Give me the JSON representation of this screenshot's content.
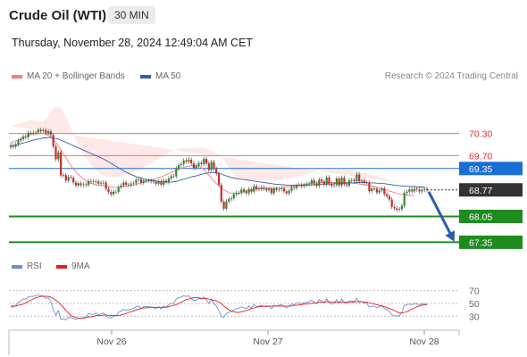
{
  "header": {
    "instrument": "Crude Oil (WTI)",
    "timeframe": "30 MIN",
    "timestamp": "Thursday, November 28, 2024 12:49:04 AM CET"
  },
  "legend": {
    "ma20_label": "MA 20 + Bollinger Bands",
    "ma20_color": "#f08080",
    "ma50_label": "MA 50",
    "ma50_color": "#3b5ea8",
    "copyright": "Research © 2024 Trading Central"
  },
  "rsi_legend": {
    "rsi_label": "RSI",
    "rsi_color": "#6b8fd6",
    "ma9_label": "9MA",
    "ma9_color": "#e02020"
  },
  "chart_data": [
    {
      "type": "candlestick",
      "ylim": [
        66.9,
        71.5
      ],
      "x_tick_labels": [
        "Nov 26",
        "Nov 27",
        "Nov 28"
      ],
      "levels": [
        {
          "value": 70.3,
          "label": "70.30",
          "kind": "resistance",
          "color": "#e57373"
        },
        {
          "value": 69.7,
          "label": "69.70",
          "kind": "resistance",
          "color": "#e57373"
        },
        {
          "value": 69.35,
          "label": "69.35",
          "kind": "pivot",
          "color": "#1a6fd6"
        },
        {
          "value": 68.77,
          "label": "68.77",
          "kind": "last-price",
          "color": "#333333"
        },
        {
          "value": 68.05,
          "label": "68.05",
          "kind": "support",
          "color": "#1e8c1e"
        },
        {
          "value": 67.35,
          "label": "67.35",
          "kind": "support",
          "color": "#1e8c1e"
        }
      ],
      "forecast": {
        "from": 68.77,
        "to": 67.35,
        "direction": "down",
        "color": "#2a5ca8"
      },
      "close": [
        69.98,
        69.94,
        70.01,
        70.11,
        70.15,
        70.22,
        70.2,
        70.32,
        70.32,
        70.31,
        70.33,
        70.4,
        70.36,
        70.39,
        70.31,
        70.36,
        70.26,
        69.95,
        69.6,
        69.79,
        69.16,
        69.17,
        69.02,
        69.12,
        69.1,
        68.97,
        68.89,
        68.95,
        68.9,
        68.92,
        68.9,
        69.01,
        69.0,
        68.98,
        69.0,
        68.94,
        68.96,
        68.97,
        68.8,
        68.71,
        68.65,
        68.72,
        68.72,
        68.85,
        68.89,
        68.97,
        68.91,
        68.91,
        68.94,
        68.95,
        69.04,
        69.06,
        68.96,
        69.02,
        69.02,
        69.02,
        69.0,
        68.99,
        68.94,
        69.0,
        68.91,
        69.02,
        68.98,
        69.08,
        69.14,
        69.14,
        69.36,
        69.44,
        69.47,
        69.57,
        69.54,
        69.59,
        69.49,
        69.37,
        69.42,
        69.5,
        69.47,
        69.61,
        69.49,
        69.31,
        69.53,
        69.34,
        69.21,
        68.91,
        68.45,
        68.26,
        68.46,
        68.52,
        68.54,
        68.65,
        68.69,
        68.69,
        68.78,
        68.73,
        68.68,
        68.79,
        68.72,
        68.87,
        68.79,
        68.8,
        68.84,
        68.8,
        68.76,
        68.8,
        68.68,
        68.81,
        68.77,
        68.79,
        68.81,
        68.73,
        68.68,
        68.75,
        68.85,
        68.82,
        68.89,
        68.9,
        68.87,
        68.9,
        68.93,
        68.94,
        69.03,
        68.94,
        68.88,
        69.05,
        69.0,
        68.91,
        69.11,
        68.93,
        68.88,
        68.9,
        69.08,
        68.89,
        69.1,
        68.92,
        68.89,
        69.03,
        69.04,
        69.0,
        69.19,
        69.0,
        69.03,
        68.96,
        68.97,
        68.74,
        68.81,
        68.8,
        68.7,
        68.76,
        68.81,
        68.65,
        68.6,
        68.51,
        68.31,
        68.27,
        68.23,
        68.25,
        68.34,
        68.69,
        68.72,
        68.78,
        68.73,
        68.8,
        68.78,
        68.73,
        68.77,
        68.8,
        68.77
      ],
      "ma50": [
        69.96,
        69.96,
        69.98,
        70.0,
        70.02,
        70.04,
        70.06,
        70.08,
        70.1,
        70.12,
        70.13,
        70.15,
        70.16,
        70.18,
        70.18,
        70.19,
        70.19,
        70.18,
        70.16,
        70.15,
        70.12,
        70.09,
        70.06,
        70.03,
        70.0,
        69.97,
        69.94,
        69.91,
        69.88,
        69.85,
        69.82,
        69.79,
        69.76,
        69.73,
        69.7,
        69.67,
        69.64,
        69.61,
        69.57,
        69.53,
        69.49,
        69.45,
        69.41,
        69.37,
        69.33,
        69.29,
        69.25,
        69.22,
        69.19,
        69.16,
        69.13,
        69.11,
        69.09,
        69.07,
        69.05,
        69.04,
        69.03,
        69.02,
        69.01,
        69.0,
        68.99,
        68.99,
        68.98,
        68.98,
        68.98,
        68.99,
        69.0,
        69.02,
        69.04,
        69.06,
        69.08,
        69.1,
        69.12,
        69.14,
        69.15,
        69.17,
        69.19,
        69.21,
        69.22,
        69.23,
        69.24,
        69.24,
        69.23,
        69.22,
        69.2,
        69.17,
        69.15,
        69.13,
        69.11,
        69.09,
        69.08,
        69.07,
        69.06,
        69.05,
        69.04,
        69.03,
        69.02,
        69.01,
        69.0,
        68.99,
        68.98,
        68.97,
        68.96,
        68.95,
        68.94,
        68.93,
        68.92,
        68.92,
        68.91,
        68.91,
        68.9,
        68.9,
        68.9,
        68.9,
        68.9,
        68.9,
        68.9,
        68.9,
        68.9,
        68.9,
        68.91,
        68.91,
        68.91,
        68.92,
        68.92,
        68.92,
        68.93,
        68.93,
        68.93,
        68.94,
        68.94,
        68.94,
        68.95,
        68.95,
        68.95,
        68.96,
        68.96,
        68.96,
        68.97,
        68.97,
        68.97,
        68.97,
        68.97,
        68.96,
        68.96,
        68.96,
        68.95,
        68.95,
        68.94,
        68.94,
        68.93,
        68.92,
        68.91,
        68.9,
        68.89,
        68.88,
        68.88,
        68.87,
        68.87,
        68.86,
        68.86,
        68.86,
        68.85,
        68.85,
        68.85,
        68.85
      ],
      "ma20": [
        70.05,
        70.08,
        70.1,
        70.12,
        70.15,
        70.18,
        70.21,
        70.24,
        70.27,
        70.29,
        70.3,
        70.31,
        70.31,
        70.3,
        70.28,
        70.25,
        70.2,
        70.13,
        70.05,
        69.96,
        69.86,
        69.75,
        69.64,
        69.53,
        69.43,
        69.34,
        69.26,
        69.19,
        69.13,
        69.07,
        69.02,
        68.98,
        68.95,
        68.93,
        68.91,
        68.9,
        68.89,
        68.88,
        68.87,
        68.86,
        68.85,
        68.84,
        68.84,
        68.84,
        68.85,
        68.86,
        68.87,
        68.88,
        68.89,
        68.9,
        68.92,
        68.94,
        68.96,
        68.98,
        69.0,
        69.02,
        69.04,
        69.06,
        69.08,
        69.1,
        69.12,
        69.15,
        69.18,
        69.21,
        69.24,
        69.27,
        69.3,
        69.33,
        69.36,
        69.38,
        69.4,
        69.41,
        69.42,
        69.43,
        69.43,
        69.42,
        69.38,
        69.32,
        69.25,
        69.17,
        69.09,
        69.01,
        68.94,
        68.88,
        68.82,
        68.77,
        68.73,
        68.7,
        68.68,
        68.67,
        68.67,
        68.68,
        68.7,
        68.72,
        68.74,
        68.76,
        68.77,
        68.78,
        68.79,
        68.8,
        68.8,
        68.81,
        68.81,
        68.81,
        68.81,
        68.81,
        68.82,
        68.82,
        68.83,
        68.84,
        68.85,
        68.86,
        68.87,
        68.88,
        68.89,
        68.9,
        68.91,
        68.92,
        68.93,
        68.94,
        68.95,
        68.96,
        68.96,
        68.97,
        68.97,
        68.97,
        68.97,
        68.97,
        68.97,
        68.97,
        68.97,
        68.97,
        68.97,
        68.97,
        68.97,
        68.97,
        68.96,
        68.95,
        68.94,
        68.93,
        68.92,
        68.91,
        68.9,
        68.89,
        68.88,
        68.86,
        68.84,
        68.82,
        68.8,
        68.78,
        68.76,
        68.74,
        68.72,
        68.7,
        68.68,
        68.66,
        68.65,
        68.64,
        68.63,
        68.62,
        68.62,
        68.62
      ],
      "bb_upper": [
        70.5,
        70.52,
        70.54,
        70.56,
        70.58,
        70.6,
        70.62,
        70.64,
        70.66,
        70.66,
        70.65,
        70.64,
        70.62,
        70.62,
        70.68,
        70.78,
        70.9,
        70.98,
        71.02,
        71.02,
        70.98,
        70.9,
        70.78,
        70.62,
        70.44,
        70.28,
        70.12,
        69.98,
        69.86,
        69.76,
        69.66,
        69.56,
        69.46,
        69.38,
        69.3,
        69.24,
        69.2,
        69.16,
        69.14,
        69.13,
        69.12,
        69.12,
        69.12,
        69.13,
        69.14,
        69.16,
        69.18,
        69.2,
        69.22,
        69.24,
        69.27,
        69.3,
        69.34,
        69.38,
        69.42,
        69.46,
        69.5,
        69.54,
        69.58,
        69.62,
        69.66,
        69.7,
        69.74,
        69.78,
        69.82,
        69.85,
        69.87,
        69.89,
        69.9,
        69.9,
        69.9,
        69.9,
        69.9,
        69.9,
        69.9,
        69.92,
        69.92,
        69.9,
        69.88,
        69.86,
        69.84,
        69.8,
        69.76,
        69.72,
        69.66,
        69.58,
        69.48,
        69.38,
        69.28,
        69.2,
        69.14,
        69.1,
        69.08,
        69.07,
        69.06,
        69.05,
        69.04,
        69.04,
        69.04,
        69.04,
        69.04,
        69.04,
        69.04,
        69.04,
        69.04,
        69.04,
        69.04,
        69.04,
        69.05,
        69.06,
        69.07,
        69.08,
        69.09,
        69.1,
        69.12,
        69.14,
        69.16,
        69.18,
        69.2,
        69.22,
        69.24,
        69.26,
        69.27,
        69.28,
        69.29,
        69.3,
        69.31,
        69.31,
        69.31,
        69.31,
        69.31,
        69.31,
        69.31,
        69.31,
        69.31,
        69.31,
        69.31,
        69.3,
        69.29,
        69.28,
        69.26,
        69.24,
        69.22,
        69.2,
        69.18,
        69.16,
        69.14,
        69.12,
        69.1,
        69.08,
        69.06,
        69.04,
        69.02,
        69.0,
        68.98,
        68.96,
        68.94,
        68.92,
        68.91,
        68.9,
        68.89,
        68.88,
        68.88,
        68.88
      ],
      "bb_lower": [
        69.6,
        69.64,
        69.68,
        69.72,
        69.76,
        69.8,
        69.84,
        69.88,
        69.92,
        69.94,
        69.96,
        69.96,
        69.95,
        69.92,
        69.84,
        69.72,
        69.56,
        69.38,
        69.18,
        68.98,
        68.8,
        68.66,
        68.54,
        68.46,
        68.42,
        68.4,
        68.4,
        68.4,
        68.4,
        68.4,
        68.42,
        68.44,
        68.46,
        68.48,
        68.5,
        68.52,
        68.54,
        68.56,
        68.58,
        68.6,
        68.6,
        68.6,
        68.6,
        68.6,
        68.6,
        68.6,
        68.6,
        68.6,
        68.6,
        68.6,
        68.6,
        68.6,
        68.6,
        68.6,
        68.6,
        68.62,
        68.64,
        68.66,
        68.68,
        68.7,
        68.72,
        68.74,
        68.76,
        68.78,
        68.8,
        68.82,
        68.84,
        68.86,
        68.88,
        68.9,
        68.9,
        68.9,
        68.9,
        68.9,
        68.9,
        68.88,
        68.84,
        68.74,
        68.6,
        68.44,
        68.28,
        68.14,
        68.04,
        67.98,
        67.96,
        67.96,
        67.98,
        68.02,
        68.08,
        68.14,
        68.2,
        68.26,
        68.3,
        68.34,
        68.38,
        68.42,
        68.46,
        68.5,
        68.52,
        68.54,
        68.56,
        68.58,
        68.58,
        68.58,
        68.58,
        68.58,
        68.6,
        68.6,
        68.6,
        68.62,
        68.62,
        68.62,
        68.62,
        68.62,
        68.62,
        68.62,
        68.62,
        68.62,
        68.62,
        68.62,
        68.62,
        68.62,
        68.62,
        68.62,
        68.62,
        68.62,
        68.62,
        68.62,
        68.62,
        68.62,
        68.62,
        68.62,
        68.62,
        68.62,
        68.62,
        68.62,
        68.62,
        68.62,
        68.6,
        68.58,
        68.56,
        68.54,
        68.5,
        68.46,
        68.42,
        68.38,
        68.34,
        68.3,
        68.26,
        68.22,
        68.18,
        68.14,
        68.1,
        68.08,
        68.08,
        68.08,
        68.08,
        68.08,
        68.1,
        68.1,
        68.12,
        68.12,
        68.12,
        68.12
      ]
    },
    {
      "type": "line",
      "name": "RSI",
      "yticks": [
        70,
        50,
        30
      ],
      "ylim": [
        15,
        85
      ],
      "x_tick_labels": [
        "Nov 26",
        "Nov 27",
        "Nov 28"
      ],
      "rsi": [
        45,
        44,
        47,
        51,
        54,
        57,
        57,
        60,
        61,
        61,
        62,
        64,
        62,
        62,
        58,
        59,
        53,
        40,
        31,
        39,
        25,
        26,
        24,
        28,
        28,
        26,
        25,
        27,
        27,
        28,
        28,
        34,
        33,
        33,
        35,
        32,
        34,
        35,
        30,
        28,
        27,
        30,
        31,
        36,
        38,
        41,
        39,
        40,
        41,
        42,
        45,
        46,
        42,
        45,
        45,
        45,
        44,
        43,
        42,
        45,
        41,
        46,
        44,
        48,
        50,
        50,
        57,
        59,
        60,
        62,
        61,
        62,
        58,
        54,
        55,
        58,
        57,
        60,
        56,
        50,
        57,
        50,
        46,
        39,
        30,
        28,
        34,
        36,
        37,
        40,
        42,
        42,
        45,
        43,
        42,
        46,
        43,
        48,
        45,
        46,
        47,
        46,
        45,
        46,
        42,
        47,
        46,
        47,
        48,
        45,
        43,
        46,
        49,
        48,
        51,
        51,
        50,
        51,
        52,
        53,
        55,
        52,
        50,
        56,
        54,
        51,
        57,
        51,
        49,
        50,
        56,
        50,
        57,
        51,
        50,
        54,
        54,
        53,
        58,
        52,
        53,
        50,
        51,
        44,
        46,
        46,
        43,
        45,
        47,
        42,
        41,
        38,
        32,
        31,
        30,
        31,
        36,
        47,
        48,
        49,
        48,
        50,
        49,
        48,
        49,
        50,
        49
      ],
      "ma9": [
        46,
        46,
        46,
        47,
        48,
        49,
        51,
        53,
        55,
        57,
        59,
        60,
        61,
        61,
        61,
        61,
        60,
        58,
        55,
        52,
        48,
        44,
        39,
        35,
        31,
        29,
        28,
        27,
        27,
        27,
        28,
        29,
        29,
        30,
        31,
        31,
        31,
        32,
        32,
        31,
        31,
        31,
        31,
        31,
        32,
        33,
        34,
        36,
        37,
        38,
        40,
        41,
        42,
        43,
        43,
        44,
        44,
        44,
        44,
        44,
        44,
        44,
        44,
        45,
        46,
        47,
        48,
        50,
        52,
        54,
        56,
        57,
        58,
        59,
        59,
        59,
        58,
        58,
        58,
        57,
        56,
        55,
        54,
        52,
        50,
        46,
        43,
        40,
        38,
        37,
        36,
        36,
        37,
        38,
        39,
        40,
        42,
        43,
        44,
        45,
        45,
        46,
        46,
        46,
        46,
        46,
        46,
        46,
        46,
        46,
        46,
        46,
        46,
        47,
        47,
        48,
        48,
        49,
        49,
        50,
        50,
        51,
        51,
        52,
        52,
        52,
        53,
        53,
        52,
        52,
        52,
        52,
        52,
        52,
        52,
        52,
        52,
        52,
        53,
        53,
        53,
        52,
        52,
        51,
        50,
        49,
        48,
        47,
        46,
        45,
        44,
        42,
        41,
        39,
        37,
        35,
        35,
        36,
        37,
        39,
        41,
        43,
        45,
        46,
        47,
        48,
        48
      ]
    }
  ]
}
